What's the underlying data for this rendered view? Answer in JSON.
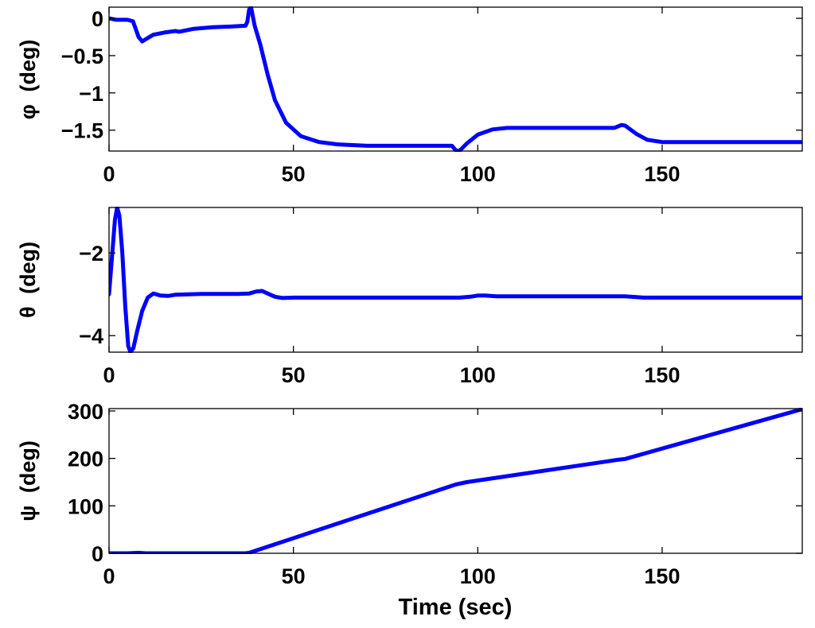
{
  "colors": {
    "series": "#0000ff",
    "axes": "#000000",
    "background": "#ffffff"
  },
  "chart_data": [
    {
      "type": "line",
      "ylabel_symbol": "φ",
      "ylabel_unit": "(deg)",
      "xlabel": "",
      "xlim": [
        0,
        188
      ],
      "ylim": [
        -1.78,
        0.15
      ],
      "xticks": [
        0,
        50,
        100,
        150
      ],
      "xtick_labels": [
        "0",
        "50",
        "100",
        "150"
      ],
      "yticks": [
        0,
        -0.5,
        -1,
        -1.5
      ],
      "ytick_labels": [
        "0",
        "−0.5",
        "−1",
        "−1.5"
      ],
      "grid": false,
      "series": [
        {
          "points": [
            [
              0,
              0
            ],
            [
              2,
              -0.02
            ],
            [
              5,
              -0.02
            ],
            [
              6.5,
              -0.04
            ],
            [
              8,
              -0.25
            ],
            [
              9,
              -0.31
            ],
            [
              10,
              -0.28
            ],
            [
              12,
              -0.22
            ],
            [
              15,
              -0.19
            ],
            [
              18,
              -0.17
            ],
            [
              19,
              -0.18
            ],
            [
              20,
              -0.17
            ],
            [
              23,
              -0.14
            ],
            [
              28,
              -0.12
            ],
            [
              33,
              -0.11
            ],
            [
              37,
              -0.1
            ],
            [
              37.5,
              -0.05
            ],
            [
              38,
              0.12
            ],
            [
              38.5,
              0.15
            ],
            [
              39.5,
              -0.1
            ],
            [
              41,
              -0.35
            ],
            [
              43,
              -0.75
            ],
            [
              45,
              -1.1
            ],
            [
              48,
              -1.4
            ],
            [
              52,
              -1.58
            ],
            [
              57,
              -1.66
            ],
            [
              62,
              -1.69
            ],
            [
              70,
              -1.71
            ],
            [
              80,
              -1.71
            ],
            [
              90,
              -1.71
            ],
            [
              93,
              -1.71
            ],
            [
              94,
              -1.77
            ],
            [
              95,
              -1.78
            ],
            [
              97,
              -1.68
            ],
            [
              100,
              -1.56
            ],
            [
              104,
              -1.49
            ],
            [
              108,
              -1.47
            ],
            [
              120,
              -1.47
            ],
            [
              130,
              -1.47
            ],
            [
              137,
              -1.47
            ],
            [
              139,
              -1.43
            ],
            [
              140,
              -1.44
            ],
            [
              143,
              -1.55
            ],
            [
              146,
              -1.63
            ],
            [
              150,
              -1.66
            ],
            [
              160,
              -1.66
            ],
            [
              170,
              -1.66
            ],
            [
              180,
              -1.66
            ],
            [
              188,
              -1.66
            ]
          ]
        }
      ]
    },
    {
      "type": "line",
      "ylabel_symbol": "θ",
      "ylabel_unit": "(deg)",
      "xlabel": "",
      "xlim": [
        0,
        188
      ],
      "ylim": [
        -4.4,
        -0.9
      ],
      "xticks": [
        0,
        50,
        100,
        150
      ],
      "xtick_labels": [
        "0",
        "50",
        "100",
        "150"
      ],
      "yticks": [
        -2,
        -4
      ],
      "ytick_labels": [
        "−2",
        "−4"
      ],
      "grid": false,
      "series": [
        {
          "points": [
            [
              0,
              -3
            ],
            [
              0.8,
              -2.1
            ],
            [
              1.6,
              -1.2
            ],
            [
              2.2,
              -0.9
            ],
            [
              2.8,
              -1.1
            ],
            [
              3.6,
              -2
            ],
            [
              4.4,
              -3.3
            ],
            [
              5.2,
              -4.25
            ],
            [
              5.8,
              -4.4
            ],
            [
              6.6,
              -4.3
            ],
            [
              7.6,
              -3.9
            ],
            [
              9,
              -3.4
            ],
            [
              10.5,
              -3.08
            ],
            [
              12,
              -2.98
            ],
            [
              14,
              -3.03
            ],
            [
              16,
              -3.04
            ],
            [
              18,
              -3.01
            ],
            [
              25,
              -2.99
            ],
            [
              35,
              -2.99
            ],
            [
              38,
              -2.98
            ],
            [
              40,
              -2.93
            ],
            [
              41.5,
              -2.92
            ],
            [
              43,
              -2.98
            ],
            [
              45,
              -3.06
            ],
            [
              47,
              -3.09
            ],
            [
              50,
              -3.08
            ],
            [
              60,
              -3.08
            ],
            [
              80,
              -3.08
            ],
            [
              95,
              -3.08
            ],
            [
              98,
              -3.06
            ],
            [
              100,
              -3.03
            ],
            [
              102,
              -3.03
            ],
            [
              105,
              -3.05
            ],
            [
              120,
              -3.05
            ],
            [
              140,
              -3.05
            ],
            [
              145,
              -3.08
            ],
            [
              150,
              -3.08
            ],
            [
              170,
              -3.08
            ],
            [
              188,
              -3.08
            ]
          ]
        }
      ]
    },
    {
      "type": "line",
      "ylabel_symbol": "ψ",
      "ylabel_unit": "(deg)",
      "xlabel": "Time (sec)",
      "xlim": [
        0,
        188
      ],
      "ylim": [
        0,
        305
      ],
      "xticks": [
        0,
        50,
        100,
        150
      ],
      "xtick_labels": [
        "0",
        "50",
        "100",
        "150"
      ],
      "yticks": [
        0,
        100,
        200,
        300
      ],
      "ytick_labels": [
        "0",
        "100",
        "200",
        "300"
      ],
      "grid": false,
      "series": [
        {
          "points": [
            [
              0,
              0
            ],
            [
              5,
              0
            ],
            [
              8,
              1
            ],
            [
              10,
              0
            ],
            [
              37,
              0
            ],
            [
              38,
              1
            ],
            [
              94,
              145
            ],
            [
              97,
              150
            ],
            [
              138,
              197
            ],
            [
              140,
              199
            ],
            [
              188,
              304
            ]
          ]
        }
      ]
    }
  ]
}
